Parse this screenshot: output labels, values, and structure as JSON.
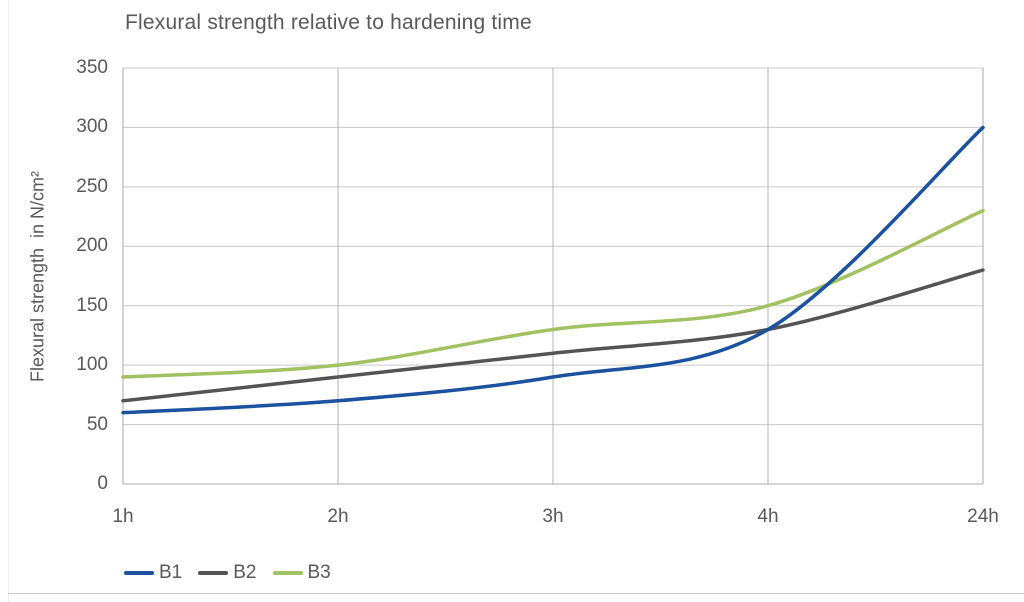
{
  "title": "Flexural strength relative to hardening time",
  "chart_data": {
    "type": "line",
    "title": "Flexural strength relative to hardening time",
    "categories": [
      "1h",
      "2h",
      "3h",
      "4h",
      "24h"
    ],
    "series": [
      {
        "name": "B1",
        "color": "#1b519e",
        "values": [
          60,
          70,
          90,
          130,
          300
        ]
      },
      {
        "name": "B2",
        "color": "#545454",
        "values": [
          70,
          90,
          110,
          130,
          180
        ]
      },
      {
        "name": "B3",
        "color": "#a2c161",
        "values": [
          90,
          100,
          130,
          150,
          230
        ]
      }
    ],
    "xlabel": "",
    "ylabel": "Flexural strength  in N/cm²",
    "ylim": [
      0,
      350
    ],
    "ytick_step": 50,
    "ytick_labels": [
      "0",
      "50",
      "100",
      "150",
      "200",
      "250",
      "300",
      "350"
    ],
    "grid": true,
    "legend_position": "bottom-left",
    "line_smoothing": "spline"
  },
  "colors": {
    "text": "#595959",
    "grid_horizontal": "#c9c9c9",
    "grid_vertical": "#b3b3b3",
    "plot_border": "#a8a8a8",
    "background": "#ffffff"
  }
}
